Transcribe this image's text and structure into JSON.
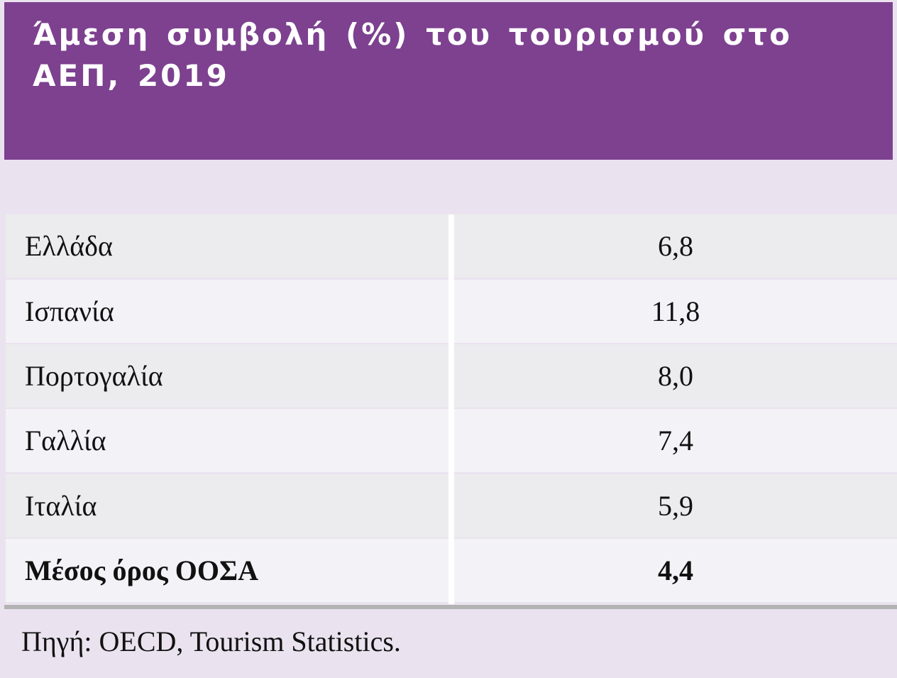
{
  "title": "Άμεση συμβολή (%) του τουρισμού στο ΑΕΠ, 2019",
  "rows": [
    {
      "name": "Ελλάδα",
      "value": "6,8"
    },
    {
      "name": "Ισπανία",
      "value": "11,8"
    },
    {
      "name": "Πορτογαλία",
      "value": "8,0"
    },
    {
      "name": "Γαλλία",
      "value": "7,4"
    },
    {
      "name": "Ιταλία",
      "value": "5,9"
    },
    {
      "name": "Μέσος όρος ΟΟΣΑ",
      "value": "4,4"
    }
  ],
  "source": "Πηγή: OECD, Tourism Statistics.",
  "colors": {
    "header_band": "#7d418f",
    "page_background": "#eae3ef",
    "row_odd": "#ececee",
    "row_even": "#f3f2f7",
    "bottom_rule": "#b3b3b3"
  }
}
